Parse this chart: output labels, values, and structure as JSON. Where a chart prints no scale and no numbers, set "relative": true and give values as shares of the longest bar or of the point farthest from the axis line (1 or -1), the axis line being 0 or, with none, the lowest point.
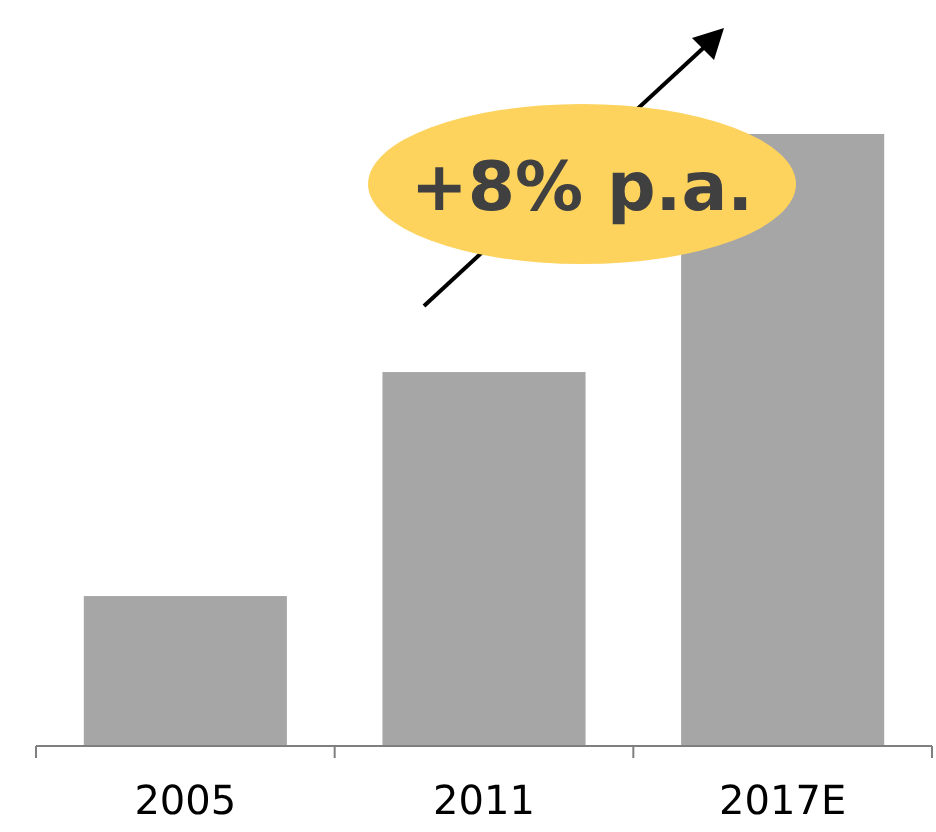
{
  "chart_data": {
    "type": "bar",
    "relative": true,
    "categories": [
      "2005",
      "2011",
      "2017E"
    ],
    "values": [
      0.245,
      0.611,
      1
    ],
    "color": "#a6a6a6",
    "annotations": [
      "+8% p.a."
    ]
  }
}
